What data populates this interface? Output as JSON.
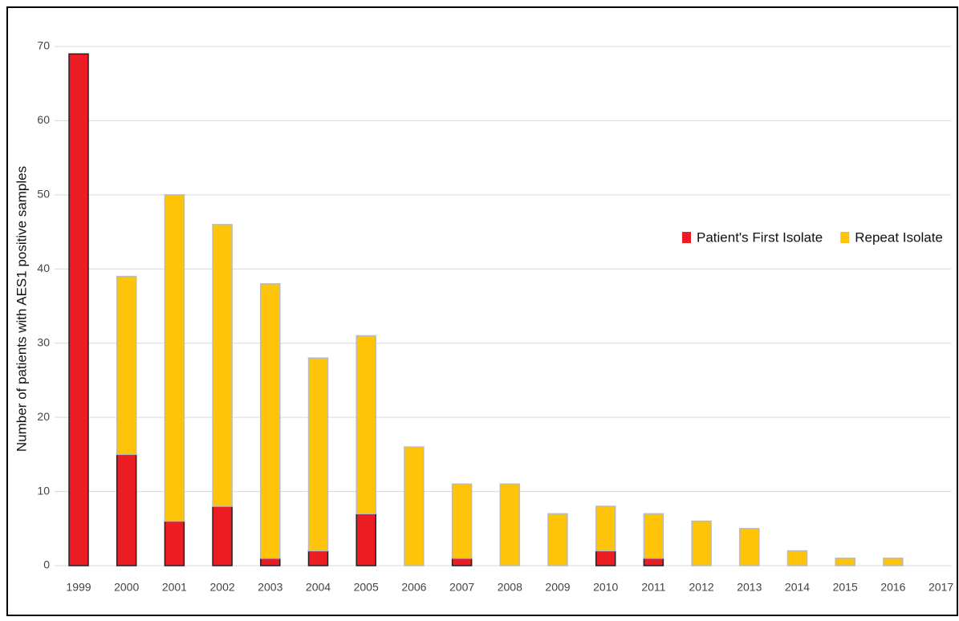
{
  "chart_data": {
    "type": "stacked_bar",
    "ylabel": "Number of patients with AES1 positive samples",
    "categories": [
      "1999",
      "2000",
      "2001",
      "2002",
      "2003",
      "2004",
      "2005",
      "2006",
      "2007",
      "2008",
      "2009",
      "2010",
      "2011",
      "2012",
      "2013",
      "2014",
      "2015",
      "2016",
      "2017"
    ],
    "series": [
      {
        "name": "Patient's First Isolate",
        "color": "#ec1c24",
        "values": [
          69,
          15,
          6,
          8,
          1,
          2,
          7,
          0,
          1,
          0,
          0,
          2,
          1,
          0,
          0,
          0,
          0,
          0,
          0
        ]
      },
      {
        "name": "Repeat Isolate",
        "color": "#fdc40a",
        "values": [
          0,
          24,
          44,
          38,
          37,
          26,
          24,
          16,
          10,
          11,
          7,
          6,
          6,
          6,
          5,
          2,
          1,
          1,
          0
        ]
      }
    ],
    "ylim": [
      0,
      70
    ],
    "yticks": [
      0,
      10,
      20,
      30,
      40,
      50,
      60,
      70
    ],
    "grid": true
  }
}
